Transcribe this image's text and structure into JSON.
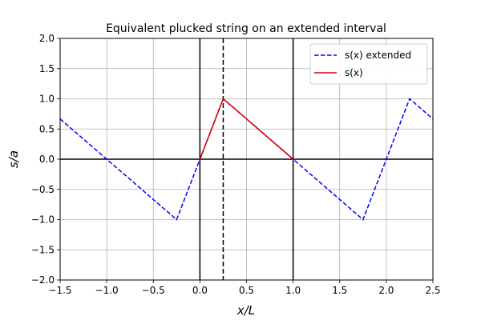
{
  "chart_data": {
    "type": "line",
    "title": "Equivalent plucked string on an extended interval",
    "xlabel": "x/L",
    "ylabel": "s/a",
    "xlim": [
      -1.5,
      2.5
    ],
    "ylim": [
      -2.0,
      2.0
    ],
    "xticks": [
      -1.5,
      -1.0,
      -0.5,
      0.0,
      0.5,
      1.0,
      1.5,
      2.0,
      2.5
    ],
    "yticks": [
      -2.0,
      -1.5,
      -1.0,
      -0.5,
      0.0,
      0.5,
      1.0,
      1.5,
      2.0
    ],
    "xtick_labels": [
      "−1.5",
      "−1.0",
      "−0.5",
      "0.0",
      "0.5",
      "1.0",
      "1.5",
      "2.0",
      "2.5"
    ],
    "ytick_labels": [
      "−2.0",
      "−1.5",
      "−1.0",
      "−0.5",
      "0.0",
      "0.5",
      "1.0",
      "1.5",
      "2.0"
    ],
    "grid": true,
    "legend_position": "top-right",
    "series": [
      {
        "name": "s(x) extended",
        "color": "#0000ff",
        "style": "dashed",
        "x": [
          -1.5,
          -1.0,
          -0.25,
          0.0,
          0.25,
          1.0,
          1.75,
          2.25,
          2.5
        ],
        "y": [
          0.6667,
          0.0,
          -1.0,
          0.0,
          1.0,
          0.0,
          -1.0,
          1.0,
          0.6667
        ]
      },
      {
        "name": "s(x)",
        "color": "#dd0000",
        "style": "solid",
        "x": [
          0.0,
          0.25,
          1.0
        ],
        "y": [
          0.0,
          1.0,
          0.0
        ]
      }
    ],
    "reference_lines": [
      {
        "orientation": "horizontal",
        "value": 0.0,
        "style": "solid",
        "color": "#000000"
      },
      {
        "orientation": "vertical",
        "value": 0.0,
        "style": "solid",
        "color": "#000000"
      },
      {
        "orientation": "vertical",
        "value": 1.0,
        "style": "solid",
        "color": "#000000"
      },
      {
        "orientation": "vertical",
        "value": 0.25,
        "style": "dashed",
        "color": "#000000"
      }
    ]
  }
}
